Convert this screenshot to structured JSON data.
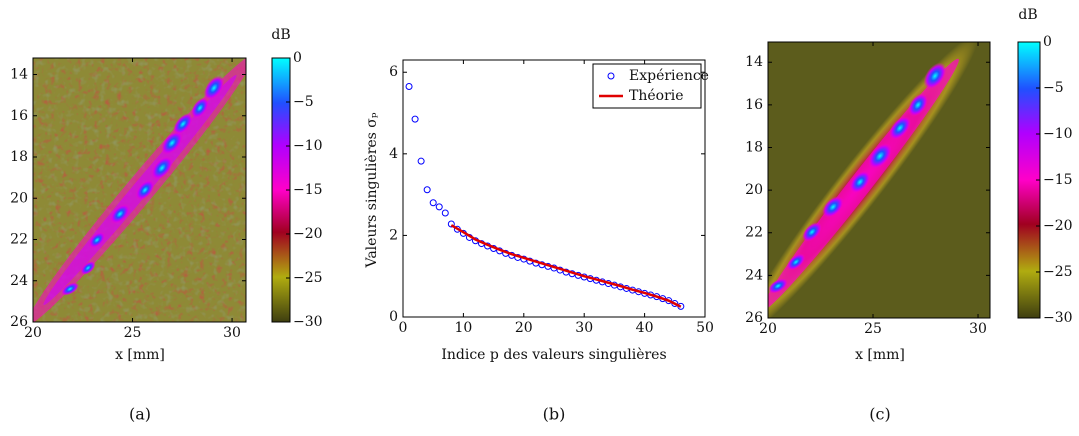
{
  "chart_data": [
    {
      "type": "heatmap",
      "caption": "(a)",
      "x_label": "x [mm]",
      "xlim": [
        20,
        30.7
      ],
      "xticks": [
        20,
        25,
        30
      ],
      "ylim": [
        26,
        13.2
      ],
      "yticks": [
        14,
        16,
        18,
        20,
        22,
        24,
        26
      ],
      "colorbar": {
        "label": "dB",
        "lim": [
          -30,
          0
        ],
        "ticks": [
          0,
          {
            "value": -5,
            "label": "−5"
          },
          {
            "value": -10,
            "label": "−10"
          },
          {
            "value": -15,
            "label": "−15"
          },
          {
            "value": -20,
            "label": "−20"
          },
          {
            "value": -25,
            "label": "−25"
          },
          {
            "value": -30,
            "label": "−30"
          }
        ]
      }
    },
    {
      "type": "scatter",
      "caption": "(b)",
      "x_label": "Indice p des valeurs singulières",
      "y_label": "Valeurs singulières σₚ",
      "xlim": [
        0,
        50
      ],
      "xticks": [
        0,
        10,
        20,
        30,
        40,
        50
      ],
      "ylim": [
        0,
        6.3
      ],
      "yticks": [
        0,
        2,
        4,
        6
      ],
      "legend": "upper right",
      "series": [
        {
          "name": "Expérience",
          "color": "#0000ff",
          "marker": "circle",
          "x": [
            1,
            2,
            3,
            4,
            5,
            6,
            7,
            8,
            9,
            10,
            11,
            12,
            13,
            14,
            15,
            16,
            17,
            18,
            19,
            20,
            21,
            22,
            23,
            24,
            25,
            26,
            27,
            28,
            29,
            30,
            31,
            32,
            33,
            34,
            35,
            36,
            37,
            38,
            39,
            40,
            41,
            42,
            43,
            44,
            45,
            46
          ],
          "values": [
            5.65,
            4.85,
            3.82,
            3.12,
            2.8,
            2.7,
            2.55,
            2.28,
            2.15,
            2.05,
            1.95,
            1.87,
            1.8,
            1.74,
            1.68,
            1.62,
            1.56,
            1.51,
            1.46,
            1.42,
            1.37,
            1.32,
            1.28,
            1.24,
            1.2,
            1.15,
            1.1,
            1.06,
            1.02,
            0.98,
            0.94,
            0.9,
            0.86,
            0.82,
            0.78,
            0.74,
            0.7,
            0.66,
            0.62,
            0.58,
            0.54,
            0.5,
            0.45,
            0.4,
            0.33,
            0.26
          ]
        },
        {
          "name": "Théorie",
          "color": "#e00000",
          "marker": "line",
          "x": [
            8,
            10,
            12,
            14,
            16,
            18,
            20,
            22,
            24,
            26,
            28,
            30,
            32,
            34,
            36,
            38,
            40,
            42,
            44,
            46
          ],
          "values": [
            2.25,
            2.08,
            1.9,
            1.77,
            1.65,
            1.54,
            1.45,
            1.36,
            1.27,
            1.18,
            1.09,
            1.0,
            0.92,
            0.84,
            0.76,
            0.67,
            0.59,
            0.5,
            0.4,
            0.25
          ]
        }
      ]
    },
    {
      "type": "heatmap",
      "caption": "(c)",
      "x_label": "x [mm]",
      "xlim": [
        20,
        30.57
      ],
      "xticks": [
        20,
        25,
        30
      ],
      "ylim": [
        26,
        13.05
      ],
      "yticks": [
        14,
        16,
        18,
        20,
        22,
        24,
        26
      ],
      "colorbar": {
        "label": "dB",
        "lim": [
          -30,
          0
        ],
        "ticks": [
          0,
          {
            "value": -5,
            "label": "−5"
          },
          {
            "value": -10,
            "label": "−10"
          },
          {
            "value": -15,
            "label": "−15"
          },
          {
            "value": -20,
            "label": "−20"
          },
          {
            "value": -25,
            "label": "−25"
          },
          {
            "value": -30,
            "label": "−30"
          }
        ]
      }
    }
  ]
}
